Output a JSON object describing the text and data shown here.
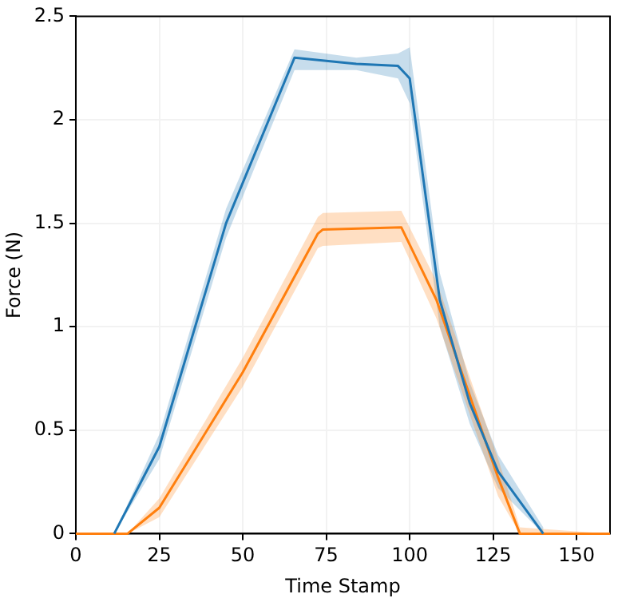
{
  "chart_data": {
    "type": "line",
    "xlabel": "Time Stamp",
    "ylabel": "Force (N)",
    "xlim": [
      0,
      160
    ],
    "ylim": [
      0,
      2.5
    ],
    "xticks": [
      0,
      25,
      50,
      75,
      100,
      125,
      150
    ],
    "yticks": [
      0,
      0.5,
      1.0,
      1.5,
      2.0,
      2.5
    ],
    "grid": true,
    "legend": false,
    "marker": "none",
    "line_style": "solid",
    "series": [
      {
        "color": "#1f77b4",
        "x": [
          11.5,
          25,
          45,
          65.5,
          84,
          96.5,
          100,
          109,
          118,
          126.5,
          140
        ],
        "values": [
          0,
          0.42,
          1.5,
          2.3,
          2.27,
          2.26,
          2.2,
          1.13,
          0.63,
          0.3,
          0
        ],
        "lower": [
          0,
          0.36,
          1.43,
          2.24,
          2.24,
          2.2,
          2.08,
          1.0,
          0.53,
          0.22,
          0
        ],
        "upper": [
          0,
          0.48,
          1.57,
          2.34,
          2.3,
          2.32,
          2.35,
          1.26,
          0.73,
          0.38,
          0.03
        ]
      },
      {
        "color": "#ff7f0e",
        "x": [
          0,
          15.5,
          25,
          50,
          72.5,
          74,
          97.5,
          108,
          117.5,
          126.5,
          133,
          160
        ],
        "values": [
          0,
          0,
          0.125,
          0.78,
          1.45,
          1.47,
          1.48,
          1.13,
          0.69,
          0.27,
          0,
          0
        ],
        "lower": [
          0,
          0,
          0.08,
          0.71,
          1.38,
          1.39,
          1.41,
          1.04,
          0.6,
          0.18,
          0,
          0
        ],
        "upper": [
          0,
          0,
          0.17,
          0.85,
          1.53,
          1.55,
          1.56,
          1.22,
          0.78,
          0.36,
          0.03,
          0
        ]
      }
    ]
  }
}
